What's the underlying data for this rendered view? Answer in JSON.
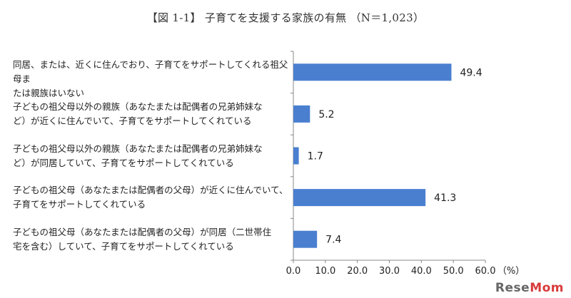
{
  "chart_data": {
    "type": "bar",
    "orientation": "horizontal",
    "title": "【図 1-1】 子育てを支援する家族の有無 （N＝1,023）",
    "categories": [
      "同居、または、近くに住んでおり、子育てをサポートしてくれる祖父母または親族はいない",
      "子どもの祖父母以外の親族（あなたまたは配偶者の兄弟姉妹など）が近くに住んでいて、子育てをサポートしてくれている",
      "子どもの祖父母以外の親族（あなたまたは配偶者の兄弟姉妹など）が同居していて、子育てをサポートしてくれている",
      "子どもの祖父母（あなたまたは配偶者の父母）が近くに住んでいて、子育てをサポートしてくれている",
      "子どもの祖父母（あなたまたは配偶者の父母）が同居（二世帯住宅を含む）していて、子育てをサポートしてくれている"
    ],
    "category_lines": [
      [
        "同居、または、近くに住んでおり、子育てをサポートしてくれる祖父母ま",
        "たは親族はいない"
      ],
      [
        "子どもの祖父母以外の親族（あなたまたは配偶者の兄弟姉妹な",
        "ど）が近くに住んでいて、子育てをサポートしてくれている"
      ],
      [
        "子どもの祖父母以外の親族（あなたまたは配偶者の兄弟姉妹な",
        "ど）が同居していて、子育てをサポートしてくれている"
      ],
      [
        "子どもの祖父母（あなたまたは配偶者の父母）が近くに住んでいて、",
        "子育てをサポートしてくれている"
      ],
      [
        "子どもの祖父母（あなたまたは配偶者の父母）が同居（二世帯住",
        "宅を含む）していて、子育てをサポートしてくれている"
      ]
    ],
    "values": [
      49.4,
      5.2,
      1.7,
      41.3,
      7.4
    ],
    "value_labels": [
      "49.4",
      "5.2",
      "1.7",
      "41.3",
      "7.4"
    ],
    "xlim": [
      0,
      60
    ],
    "x_ticks": [
      "0.0",
      "10.0",
      "20.0",
      "30.0",
      "40.0",
      "50.0",
      "60.0"
    ],
    "x_unit": "（%）",
    "bar_color": "#4a7fd0",
    "grid": false,
    "legend": "none"
  },
  "watermark": {
    "part1": "Rese",
    "part2": "Mom"
  }
}
